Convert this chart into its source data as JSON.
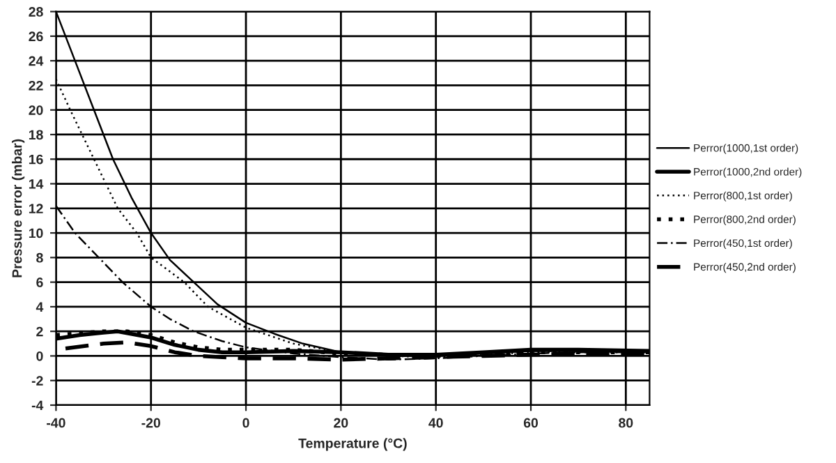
{
  "chart_data": {
    "type": "line",
    "xlabel": "Temperature (°C)",
    "ylabel": "Pressure error (mbar)",
    "xlim": [
      -40,
      85
    ],
    "xticks": [
      -40,
      -20,
      0,
      20,
      40,
      60,
      80
    ],
    "ylim": [
      -4,
      28
    ],
    "yticks": [
      -4,
      -2,
      0,
      2,
      4,
      6,
      8,
      10,
      12,
      14,
      16,
      18,
      20,
      22,
      24,
      26,
      28
    ],
    "grid": true,
    "legend": "right",
    "marker": "none",
    "series": [
      {
        "name": "Perror(1000,1st order)",
        "color": "#000000",
        "line_style": "solid",
        "x": [
          -40,
          -36,
          -32,
          -28,
          -24,
          -20,
          -16,
          -11,
          -6,
          0,
          6,
          12,
          20,
          30,
          40,
          50,
          60,
          70,
          85
        ],
        "values": [
          28,
          24,
          20,
          16,
          12.8,
          10,
          7.8,
          6,
          4.2,
          2.7,
          1.8,
          1,
          0.3,
          0,
          0,
          0.2,
          0.4,
          0.4,
          0.3
        ]
      },
      {
        "name": "Perror(1000,2nd order)",
        "color": "#000000",
        "line_style": "solid",
        "x": [
          -40,
          -35,
          -30,
          -27,
          -20,
          -15,
          -10,
          -5,
          0,
          10,
          20,
          30,
          40,
          50,
          60,
          70,
          85
        ],
        "values": [
          1.4,
          1.7,
          1.9,
          2.0,
          1.5,
          0.9,
          0.5,
          0.3,
          0.3,
          0.4,
          0.3,
          0.1,
          0.1,
          0.3,
          0.5,
          0.5,
          0.4
        ]
      },
      {
        "name": "Perror(800,1st order)",
        "color": "#000000",
        "line_style": "dotted",
        "x": [
          -40,
          -37,
          -32,
          -27,
          -23,
          -20,
          -13,
          -8,
          0,
          10,
          20,
          30,
          40,
          50,
          60,
          70,
          85
        ],
        "values": [
          22.5,
          20,
          16,
          12,
          10,
          8,
          6,
          4,
          2.3,
          1,
          0.3,
          0,
          -0.1,
          0.1,
          0.3,
          0.3,
          0.3
        ]
      },
      {
        "name": "Perror(800,2nd order)",
        "color": "#000000",
        "line_style": "dotted",
        "x": [
          -40,
          -30,
          -25,
          -20,
          -15,
          -10,
          -5,
          0,
          10,
          20,
          30,
          40,
          50,
          60,
          70,
          85
        ],
        "values": [
          1.7,
          2.0,
          2.0,
          1.7,
          1.1,
          0.7,
          0.5,
          0.5,
          0.5,
          0.2,
          0.1,
          0,
          0.2,
          0.3,
          0.3,
          0.3
        ]
      },
      {
        "name": "Perror(450,1st order)",
        "color": "#000000",
        "line_style": "dashdot",
        "x": [
          -40,
          -36,
          -31,
          -26,
          -20,
          -16,
          -11,
          -5,
          0,
          10,
          20,
          30,
          40,
          50,
          60,
          70,
          85
        ],
        "values": [
          12.2,
          10,
          8,
          6,
          4,
          3,
          2,
          1.2,
          0.7,
          0.2,
          -0.1,
          -0.3,
          -0.2,
          0,
          0.2,
          0.3,
          0.3
        ]
      },
      {
        "name": "Perror(450,2nd order)",
        "color": "#000000",
        "line_style": "dashed",
        "x": [
          -38,
          -30,
          -25,
          -20,
          -15,
          -10,
          -5,
          0,
          10,
          20,
          30,
          40,
          50,
          60,
          70,
          85
        ],
        "values": [
          0.6,
          1.0,
          1.1,
          0.8,
          0.3,
          0,
          -0.1,
          -0.2,
          -0.2,
          -0.3,
          -0.2,
          -0.1,
          0,
          0.1,
          0.2,
          0.2
        ]
      }
    ]
  }
}
